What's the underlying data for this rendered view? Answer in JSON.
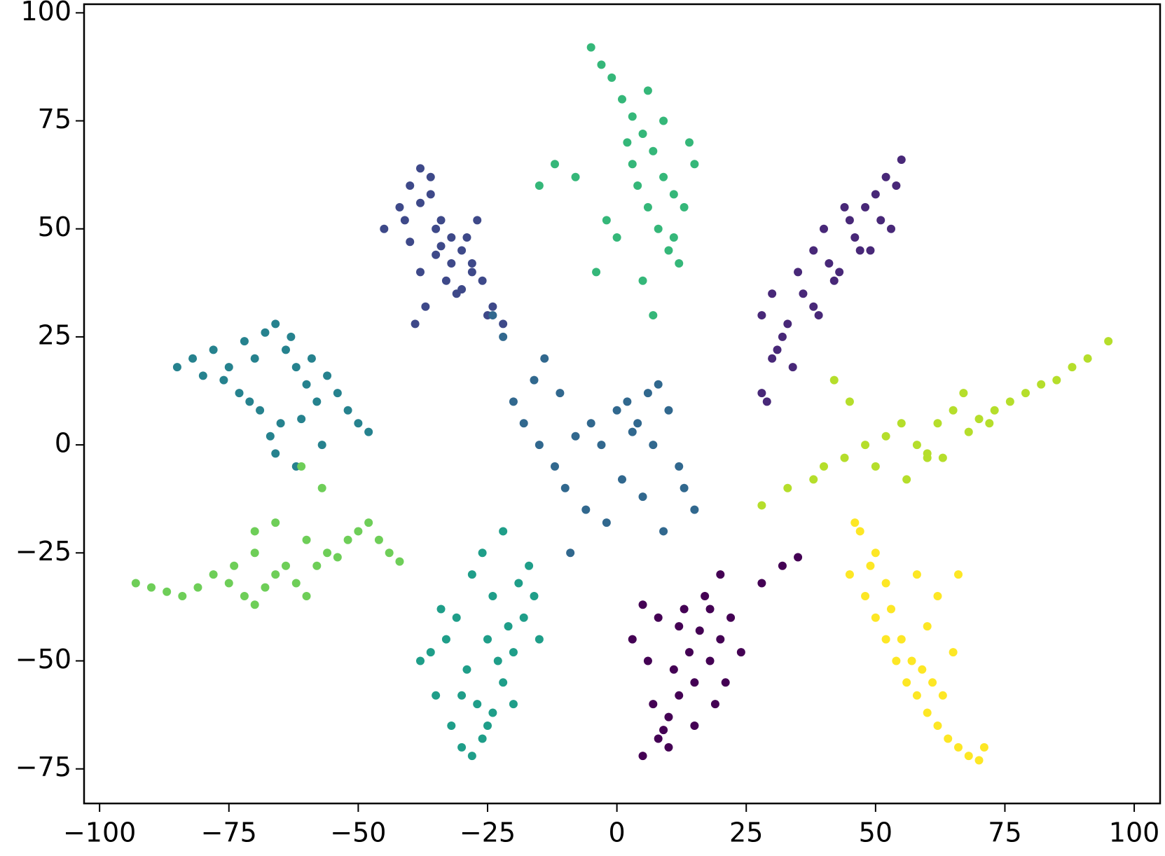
{
  "chart_data": {
    "type": "scatter",
    "xlim": [
      -103,
      105
    ],
    "ylim": [
      -83,
      102
    ],
    "xticks": [
      {
        "value": -100,
        "label": "−100"
      },
      {
        "value": -75,
        "label": "−75"
      },
      {
        "value": -50,
        "label": "−50"
      },
      {
        "value": -25,
        "label": "−25"
      },
      0,
      25,
      50,
      75,
      100
    ],
    "yticks": [
      {
        "value": -75,
        "label": "−75"
      },
      {
        "value": -50,
        "label": "−50"
      },
      {
        "value": -25,
        "label": "−25"
      },
      0,
      25,
      50,
      75,
      100
    ],
    "grid": false,
    "series": [
      {
        "color": "#440154",
        "x": [
          5,
          8,
          10,
          12,
          15,
          18,
          20,
          22,
          14,
          16,
          11,
          7,
          9,
          13,
          17,
          19,
          21,
          24,
          28,
          32,
          35,
          3,
          6,
          12,
          15,
          18,
          10,
          8,
          5,
          20
        ],
        "values": [
          -72,
          -68,
          -63,
          -58,
          -55,
          -50,
          -45,
          -40,
          -48,
          -43,
          -52,
          -60,
          -66,
          -38,
          -35,
          -60,
          -55,
          -48,
          -32,
          -28,
          -26,
          -45,
          -50,
          -42,
          -65,
          -38,
          -70,
          -40,
          -37,
          -30
        ]
      },
      {
        "color": "#482878",
        "x": [
          28,
          30,
          32,
          35,
          38,
          40,
          42,
          45,
          48,
          50,
          52,
          55,
          53,
          47,
          43,
          38,
          33,
          30,
          28,
          36,
          41,
          46,
          51,
          54,
          31,
          29,
          34,
          39,
          44,
          49
        ],
        "values": [
          30,
          35,
          25,
          40,
          45,
          50,
          38,
          52,
          55,
          58,
          62,
          66,
          50,
          45,
          40,
          32,
          28,
          20,
          12,
          35,
          42,
          48,
          52,
          60,
          22,
          10,
          18,
          30,
          55,
          45
        ]
      },
      {
        "color": "#3e4989",
        "x": [
          -45,
          -42,
          -40,
          -38,
          -36,
          -34,
          -32,
          -30,
          -28,
          -26,
          -38,
          -35,
          -33,
          -31,
          -29,
          -37,
          -39,
          -41,
          -27,
          -25,
          -36,
          -32,
          -30,
          -34,
          -40,
          -28,
          -24,
          -22,
          -35,
          -38
        ],
        "values": [
          50,
          55,
          60,
          64,
          58,
          52,
          48,
          45,
          42,
          38,
          40,
          44,
          38,
          35,
          48,
          32,
          28,
          52,
          52,
          30,
          62,
          42,
          36,
          46,
          47,
          40,
          32,
          28,
          50,
          56
        ]
      },
      {
        "color": "#31688e",
        "x": [
          -20,
          -18,
          -15,
          -12,
          -10,
          -8,
          -5,
          -3,
          0,
          2,
          4,
          6,
          8,
          10,
          12,
          -16,
          -14,
          -6,
          -2,
          1,
          3,
          5,
          9,
          -22,
          -24,
          -11,
          -9,
          7,
          13,
          15
        ],
        "values": [
          10,
          5,
          0,
          -5,
          -10,
          2,
          5,
          0,
          8,
          10,
          5,
          12,
          14,
          8,
          -5,
          15,
          20,
          -15,
          -18,
          -8,
          3,
          -12,
          -20,
          25,
          30,
          12,
          -25,
          0,
          -10,
          -15
        ]
      },
      {
        "color": "#26828e",
        "x": [
          -85,
          -82,
          -80,
          -78,
          -75,
          -72,
          -70,
          -68,
          -66,
          -64,
          -62,
          -60,
          -58,
          -56,
          -54,
          -76,
          -73,
          -69,
          -65,
          -61,
          -67,
          -71,
          -63,
          -59,
          -52,
          -50,
          -48,
          -66,
          -62,
          -57
        ],
        "values": [
          18,
          20,
          16,
          22,
          18,
          24,
          20,
          26,
          28,
          22,
          18,
          14,
          10,
          16,
          12,
          15,
          12,
          8,
          5,
          6,
          2,
          10,
          25,
          20,
          8,
          5,
          3,
          -2,
          -5,
          0
        ]
      },
      {
        "color": "#1f9e89",
        "x": [
          -38,
          -35,
          -32,
          -30,
          -28,
          -26,
          -24,
          -22,
          -20,
          -18,
          -16,
          -33,
          -29,
          -27,
          -25,
          -23,
          -21,
          -19,
          -31,
          -34,
          -36,
          -28,
          -26,
          -24,
          -22,
          -30,
          -17,
          -15,
          -20,
          -25
        ],
        "values": [
          -50,
          -58,
          -65,
          -70,
          -72,
          -68,
          -62,
          -55,
          -48,
          -40,
          -35,
          -45,
          -52,
          -60,
          -65,
          -50,
          -42,
          -32,
          -40,
          -38,
          -48,
          -30,
          -25,
          -35,
          -20,
          -58,
          -28,
          -45,
          -60,
          -45
        ]
      },
      {
        "color": "#35b779",
        "x": [
          -5,
          -3,
          -1,
          1,
          3,
          5,
          7,
          9,
          11,
          13,
          15,
          2,
          4,
          6,
          8,
          10,
          12,
          0,
          -2,
          -4,
          14,
          9,
          6,
          3,
          5,
          7,
          11,
          -8,
          -12,
          -15
        ],
        "values": [
          92,
          88,
          85,
          80,
          76,
          72,
          68,
          62,
          58,
          55,
          65,
          70,
          60,
          55,
          50,
          45,
          42,
          48,
          52,
          40,
          70,
          75,
          82,
          65,
          38,
          30,
          48,
          62,
          65,
          60
        ]
      },
      {
        "color": "#6ece58",
        "x": [
          -93,
          -90,
          -87,
          -84,
          -81,
          -78,
          -75,
          -72,
          -70,
          -68,
          -66,
          -64,
          -62,
          -60,
          -58,
          -56,
          -54,
          -52,
          -50,
          -48,
          -46,
          -44,
          -42,
          -74,
          -70,
          -66,
          -60,
          -57,
          -61,
          -70
        ],
        "values": [
          -32,
          -33,
          -34,
          -35,
          -33,
          -30,
          -32,
          -35,
          -37,
          -33,
          -30,
          -28,
          -32,
          -35,
          -28,
          -25,
          -26,
          -22,
          -20,
          -18,
          -22,
          -25,
          -27,
          -28,
          -20,
          -18,
          -22,
          -10,
          -5,
          -25
        ]
      },
      {
        "color": "#b5de2b",
        "x": [
          40,
          44,
          48,
          52,
          55,
          58,
          60,
          62,
          65,
          68,
          70,
          73,
          76,
          79,
          82,
          85,
          88,
          91,
          95,
          50,
          56,
          63,
          67,
          72,
          45,
          38,
          33,
          28,
          42,
          60
        ],
        "values": [
          -5,
          -3,
          0,
          2,
          5,
          0,
          -3,
          5,
          8,
          3,
          6,
          8,
          10,
          12,
          14,
          15,
          18,
          20,
          24,
          -5,
          -8,
          -3,
          12,
          5,
          10,
          -8,
          -10,
          -14,
          15,
          -2
        ]
      },
      {
        "color": "#fde725",
        "x": [
          45,
          48,
          50,
          52,
          54,
          56,
          58,
          60,
          62,
          64,
          66,
          68,
          70,
          71,
          55,
          57,
          59,
          61,
          63,
          65,
          52,
          49,
          47,
          53,
          58,
          62,
          60,
          50,
          46,
          66
        ],
        "values": [
          -30,
          -35,
          -40,
          -45,
          -50,
          -55,
          -58,
          -62,
          -65,
          -68,
          -70,
          -72,
          -73,
          -70,
          -45,
          -50,
          -52,
          -55,
          -58,
          -48,
          -32,
          -28,
          -20,
          -38,
          -30,
          -35,
          -42,
          -25,
          -18,
          -30
        ]
      }
    ]
  }
}
